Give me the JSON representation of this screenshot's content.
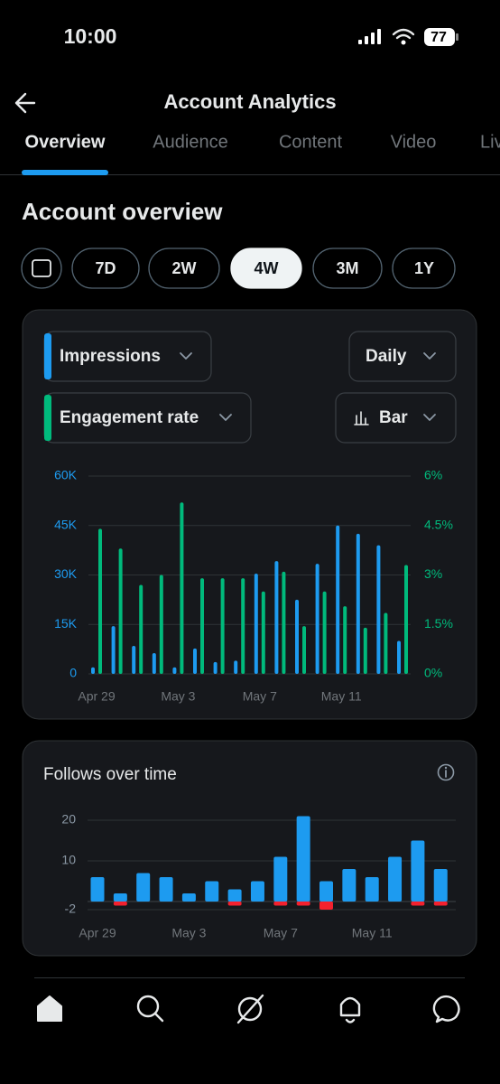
{
  "status": {
    "time": "10:00",
    "battery": "77"
  },
  "header": {
    "title": "Account Analytics"
  },
  "tabs": [
    "Overview",
    "Audience",
    "Content",
    "Video",
    "Live"
  ],
  "section_title": "Account overview",
  "ranges": [
    "7D",
    "2W",
    "4W",
    "3M",
    "1Y"
  ],
  "chart_data": [
    {
      "type": "bar",
      "interval": "Daily",
      "view": "Bar",
      "categories": [
        "Apr 29",
        null,
        null,
        null,
        "May 3",
        null,
        null,
        null,
        "May 7",
        null,
        null,
        null,
        "May 11",
        null,
        null,
        null
      ],
      "series": [
        {
          "name": "Impressions",
          "color": "#1d9bf0",
          "values": [
            2000,
            14500,
            8500,
            6300,
            2000,
            7700,
            3600,
            4000,
            30400,
            34200,
            22500,
            33400,
            45000,
            42500,
            39000,
            10000
          ]
        },
        {
          "name": "Engagement rate",
          "color": "#00ba7c",
          "axis": "y2",
          "values": [
            4.4,
            3.8,
            2.7,
            3.0,
            5.2,
            2.9,
            2.9,
            2.9,
            2.5,
            3.1,
            1.45,
            2.5,
            2.05,
            1.4,
            1.85,
            3.3
          ]
        }
      ],
      "ylim": [
        0,
        60000
      ],
      "yticks": [
        0,
        {
          "value": 15000,
          "label": "15K"
        },
        {
          "value": 30000,
          "label": "30K"
        },
        {
          "value": 45000,
          "label": "45K"
        },
        {
          "value": 60000,
          "label": "60K"
        }
      ],
      "y2lim": [
        0,
        6
      ],
      "y2ticks": [
        {
          "value": 0,
          "label": "0%"
        },
        {
          "value": 1.5,
          "label": "1.5%"
        },
        {
          "value": 3,
          "label": "3%"
        },
        {
          "value": 4.5,
          "label": "4.5%"
        },
        {
          "value": 6,
          "label": "6%"
        }
      ],
      "grid": true
    },
    {
      "type": "bar",
      "title": "Follows over time",
      "categories": [
        "Apr 29",
        null,
        null,
        null,
        "May 3",
        null,
        null,
        null,
        "May 7",
        null,
        null,
        null,
        "May 11",
        null,
        null,
        null
      ],
      "series": [
        {
          "color": "#1d9bf0",
          "values": [
            6,
            2,
            7,
            6,
            2,
            5,
            3,
            5,
            11,
            21,
            5,
            8,
            6,
            11,
            15,
            8
          ]
        },
        {
          "color": "#f4212e",
          "values": [
            0,
            -1,
            0,
            0,
            0,
            0,
            -1,
            0,
            -1,
            -1,
            -2,
            0,
            0,
            0,
            -1,
            -1
          ]
        }
      ],
      "ylim": [
        -2,
        22
      ],
      "yticks": [
        -2,
        10,
        20
      ],
      "grid": true
    }
  ]
}
